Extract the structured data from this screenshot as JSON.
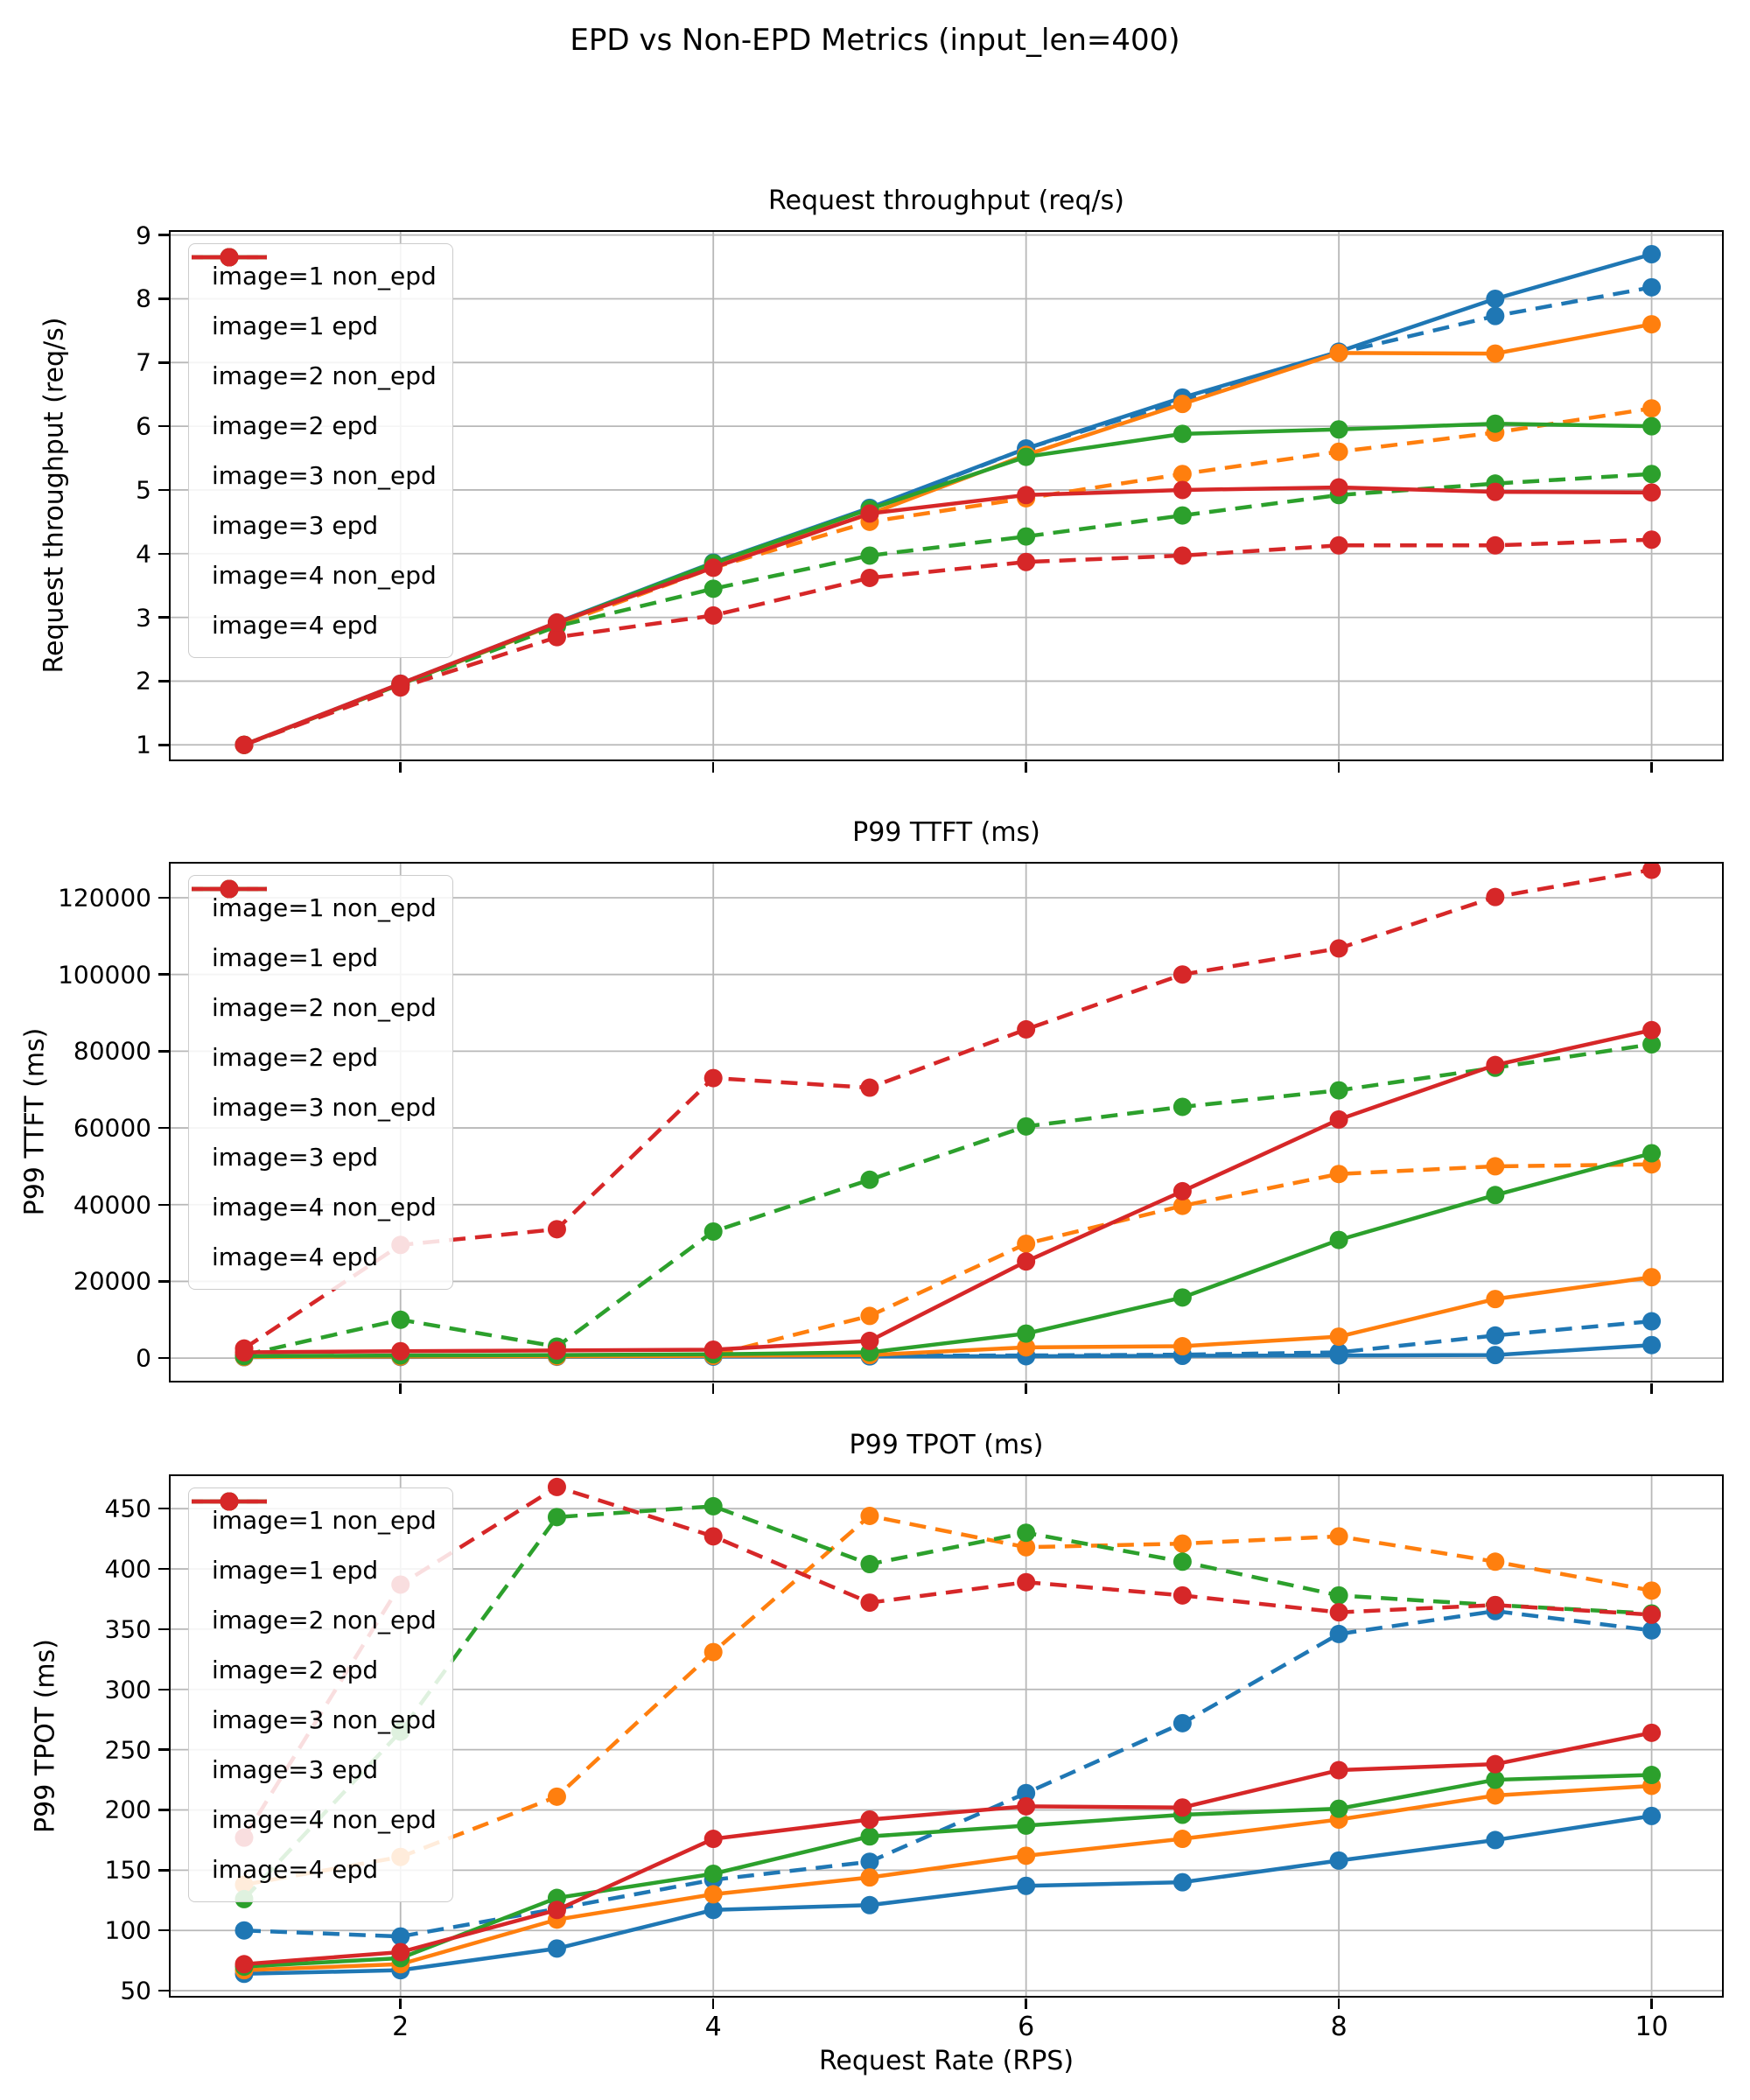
{
  "figure": {
    "suptitle": "EPD vs Non-EPD Metrics (input_len=400)",
    "xlabel": "Request Rate (RPS)"
  },
  "colors": {
    "blue": "#1f77b4",
    "orange": "#ff7f0e",
    "green": "#2ca02c",
    "red": "#d62728",
    "grid": "#b8b8b8"
  },
  "chart_data": [
    {
      "type": "line",
      "title": "Request throughput (req/s)",
      "ylabel": "Request throughput (req/s)",
      "x": [
        1,
        2,
        3,
        4,
        5,
        6,
        7,
        8,
        9,
        10
      ],
      "xlim": [
        0.53,
        10.45
      ],
      "ylim": [
        0.77,
        9.05
      ],
      "xticks": [
        2,
        4,
        6,
        8,
        10
      ],
      "xticklabels": [],
      "yticks": [
        1,
        2,
        3,
        4,
        5,
        6,
        7,
        8,
        9
      ],
      "yticklabels": [
        "1",
        "2",
        "3",
        "4",
        "5",
        "6",
        "7",
        "8",
        "9"
      ],
      "grid": true,
      "legend_position": "upper-left",
      "series": [
        {
          "name": "image=1 non_epd",
          "color": "#1f77b4",
          "dashed": true,
          "values": [
            1.0,
            1.95,
            2.9,
            3.85,
            4.7,
            5.65,
            6.4,
            7.15,
            7.73,
            8.18
          ]
        },
        {
          "name": "image=1 epd",
          "color": "#1f77b4",
          "dashed": false,
          "values": [
            1.0,
            1.96,
            2.92,
            3.86,
            4.72,
            5.65,
            6.45,
            7.17,
            8.0,
            8.7
          ]
        },
        {
          "name": "image=2 non_epd",
          "color": "#ff7f0e",
          "dashed": true,
          "values": [
            1.0,
            1.94,
            2.88,
            3.78,
            4.5,
            4.87,
            5.25,
            5.6,
            5.9,
            6.28
          ]
        },
        {
          "name": "image=2 epd",
          "color": "#ff7f0e",
          "dashed": false,
          "values": [
            1.0,
            1.95,
            2.9,
            3.84,
            4.62,
            5.55,
            6.35,
            7.15,
            7.14,
            7.6
          ]
        },
        {
          "name": "image=3 non_epd",
          "color": "#2ca02c",
          "dashed": true,
          "values": [
            1.0,
            1.93,
            2.86,
            3.45,
            3.97,
            4.27,
            4.6,
            4.92,
            5.1,
            5.25
          ]
        },
        {
          "name": "image=3 epd",
          "color": "#2ca02c",
          "dashed": false,
          "values": [
            1.0,
            1.95,
            2.91,
            3.85,
            4.7,
            5.52,
            5.88,
            5.95,
            6.04,
            6.0
          ]
        },
        {
          "name": "image=4 non_epd",
          "color": "#d62728",
          "dashed": true,
          "values": [
            1.0,
            1.9,
            2.69,
            3.03,
            3.62,
            3.87,
            3.97,
            4.13,
            4.13,
            4.22
          ]
        },
        {
          "name": "image=4 epd",
          "color": "#d62728",
          "dashed": false,
          "values": [
            1.0,
            1.96,
            2.92,
            3.78,
            4.63,
            4.92,
            5.0,
            5.04,
            4.97,
            4.96
          ]
        }
      ]
    },
    {
      "type": "line",
      "title": "P99 TTFT (ms)",
      "ylabel": "P99 TTFT (ms)",
      "x": [
        1,
        2,
        3,
        4,
        5,
        6,
        7,
        8,
        9,
        10
      ],
      "xlim": [
        0.53,
        10.45
      ],
      "ylim": [
        -5900,
        128900
      ],
      "xticks": [
        2,
        4,
        6,
        8,
        10
      ],
      "xticklabels": [],
      "yticks": [
        0,
        20000,
        40000,
        60000,
        80000,
        100000,
        120000
      ],
      "yticklabels": [
        "0",
        "20000",
        "40000",
        "60000",
        "80000",
        "100000",
        "120000"
      ],
      "grid": true,
      "legend_position": "upper-left",
      "series": [
        {
          "name": "image=1 non_epd",
          "color": "#1f77b4",
          "dashed": true,
          "values": [
            300,
            400,
            450,
            500,
            600,
            700,
            900,
            1500,
            5900,
            9600
          ]
        },
        {
          "name": "image=1 epd",
          "color": "#1f77b4",
          "dashed": false,
          "values": [
            250,
            300,
            350,
            400,
            450,
            500,
            600,
            700,
            800,
            3400
          ]
        },
        {
          "name": "image=2 non_epd",
          "color": "#ff7f0e",
          "dashed": true,
          "values": [
            400,
            500,
            600,
            800,
            11000,
            29800,
            39700,
            48000,
            50000,
            50500
          ]
        },
        {
          "name": "image=2 epd",
          "color": "#ff7f0e",
          "dashed": false,
          "values": [
            300,
            400,
            450,
            600,
            800,
            2800,
            3100,
            5600,
            15400,
            21100
          ]
        },
        {
          "name": "image=3 non_epd",
          "color": "#2ca02c",
          "dashed": true,
          "values": [
            800,
            10000,
            3000,
            33000,
            46500,
            60400,
            65500,
            69800,
            75700,
            81800
          ]
        },
        {
          "name": "image=3 epd",
          "color": "#2ca02c",
          "dashed": false,
          "values": [
            500,
            700,
            800,
            1000,
            1500,
            6400,
            15800,
            30800,
            42500,
            53400
          ]
        },
        {
          "name": "image=4 non_epd",
          "color": "#d62728",
          "dashed": true,
          "values": [
            2500,
            29500,
            33600,
            73000,
            70500,
            85700,
            100000,
            106800,
            120200,
            127300
          ]
        },
        {
          "name": "image=4 epd",
          "color": "#d62728",
          "dashed": false,
          "values": [
            1500,
            1800,
            2000,
            2200,
            4500,
            25200,
            43500,
            62200,
            76400,
            85500
          ]
        }
      ]
    },
    {
      "type": "line",
      "title": "P99 TPOT (ms)",
      "ylabel": "P99 TPOT (ms)",
      "x": [
        1,
        2,
        3,
        4,
        5,
        6,
        7,
        8,
        9,
        10
      ],
      "xlim": [
        0.53,
        10.45
      ],
      "ylim": [
        45.7,
        477
      ],
      "xticks": [
        2,
        4,
        6,
        8,
        10
      ],
      "xticklabels": [
        "2",
        "4",
        "6",
        "8",
        "10"
      ],
      "yticks": [
        50,
        100,
        150,
        200,
        250,
        300,
        350,
        400,
        450
      ],
      "yticklabels": [
        "50",
        "100",
        "150",
        "200",
        "250",
        "300",
        "350",
        "400",
        "450"
      ],
      "grid": true,
      "legend_position": "upper-left",
      "series": [
        {
          "name": "image=1 non_epd",
          "color": "#1f77b4",
          "dashed": true,
          "values": [
            100,
            95,
            118,
            142,
            157,
            214,
            272,
            346,
            365,
            349
          ]
        },
        {
          "name": "image=1 epd",
          "color": "#1f77b4",
          "dashed": false,
          "values": [
            64,
            67,
            85,
            117,
            121,
            137,
            140,
            158,
            175,
            195
          ]
        },
        {
          "name": "image=2 non_epd",
          "color": "#ff7f0e",
          "dashed": true,
          "values": [
            138,
            161,
            211,
            331,
            444,
            418,
            421,
            427,
            406,
            382
          ]
        },
        {
          "name": "image=2 epd",
          "color": "#ff7f0e",
          "dashed": false,
          "values": [
            67,
            72,
            109,
            130,
            144,
            162,
            176,
            192,
            212,
            220
          ]
        },
        {
          "name": "image=3 non_epd",
          "color": "#2ca02c",
          "dashed": true,
          "values": [
            126,
            265,
            443,
            452,
            404,
            430,
            406,
            378,
            370,
            363
          ]
        },
        {
          "name": "image=3 epd",
          "color": "#2ca02c",
          "dashed": false,
          "values": [
            70,
            77,
            127,
            147,
            178,
            187,
            196,
            201,
            225,
            229
          ]
        },
        {
          "name": "image=4 non_epd",
          "color": "#d62728",
          "dashed": true,
          "values": [
            177,
            387,
            468,
            427,
            372,
            389,
            378,
            364,
            370,
            362
          ]
        },
        {
          "name": "image=4 epd",
          "color": "#d62728",
          "dashed": false,
          "values": [
            72,
            82,
            117,
            176,
            192,
            203,
            202,
            233,
            238,
            264
          ]
        }
      ]
    }
  ]
}
